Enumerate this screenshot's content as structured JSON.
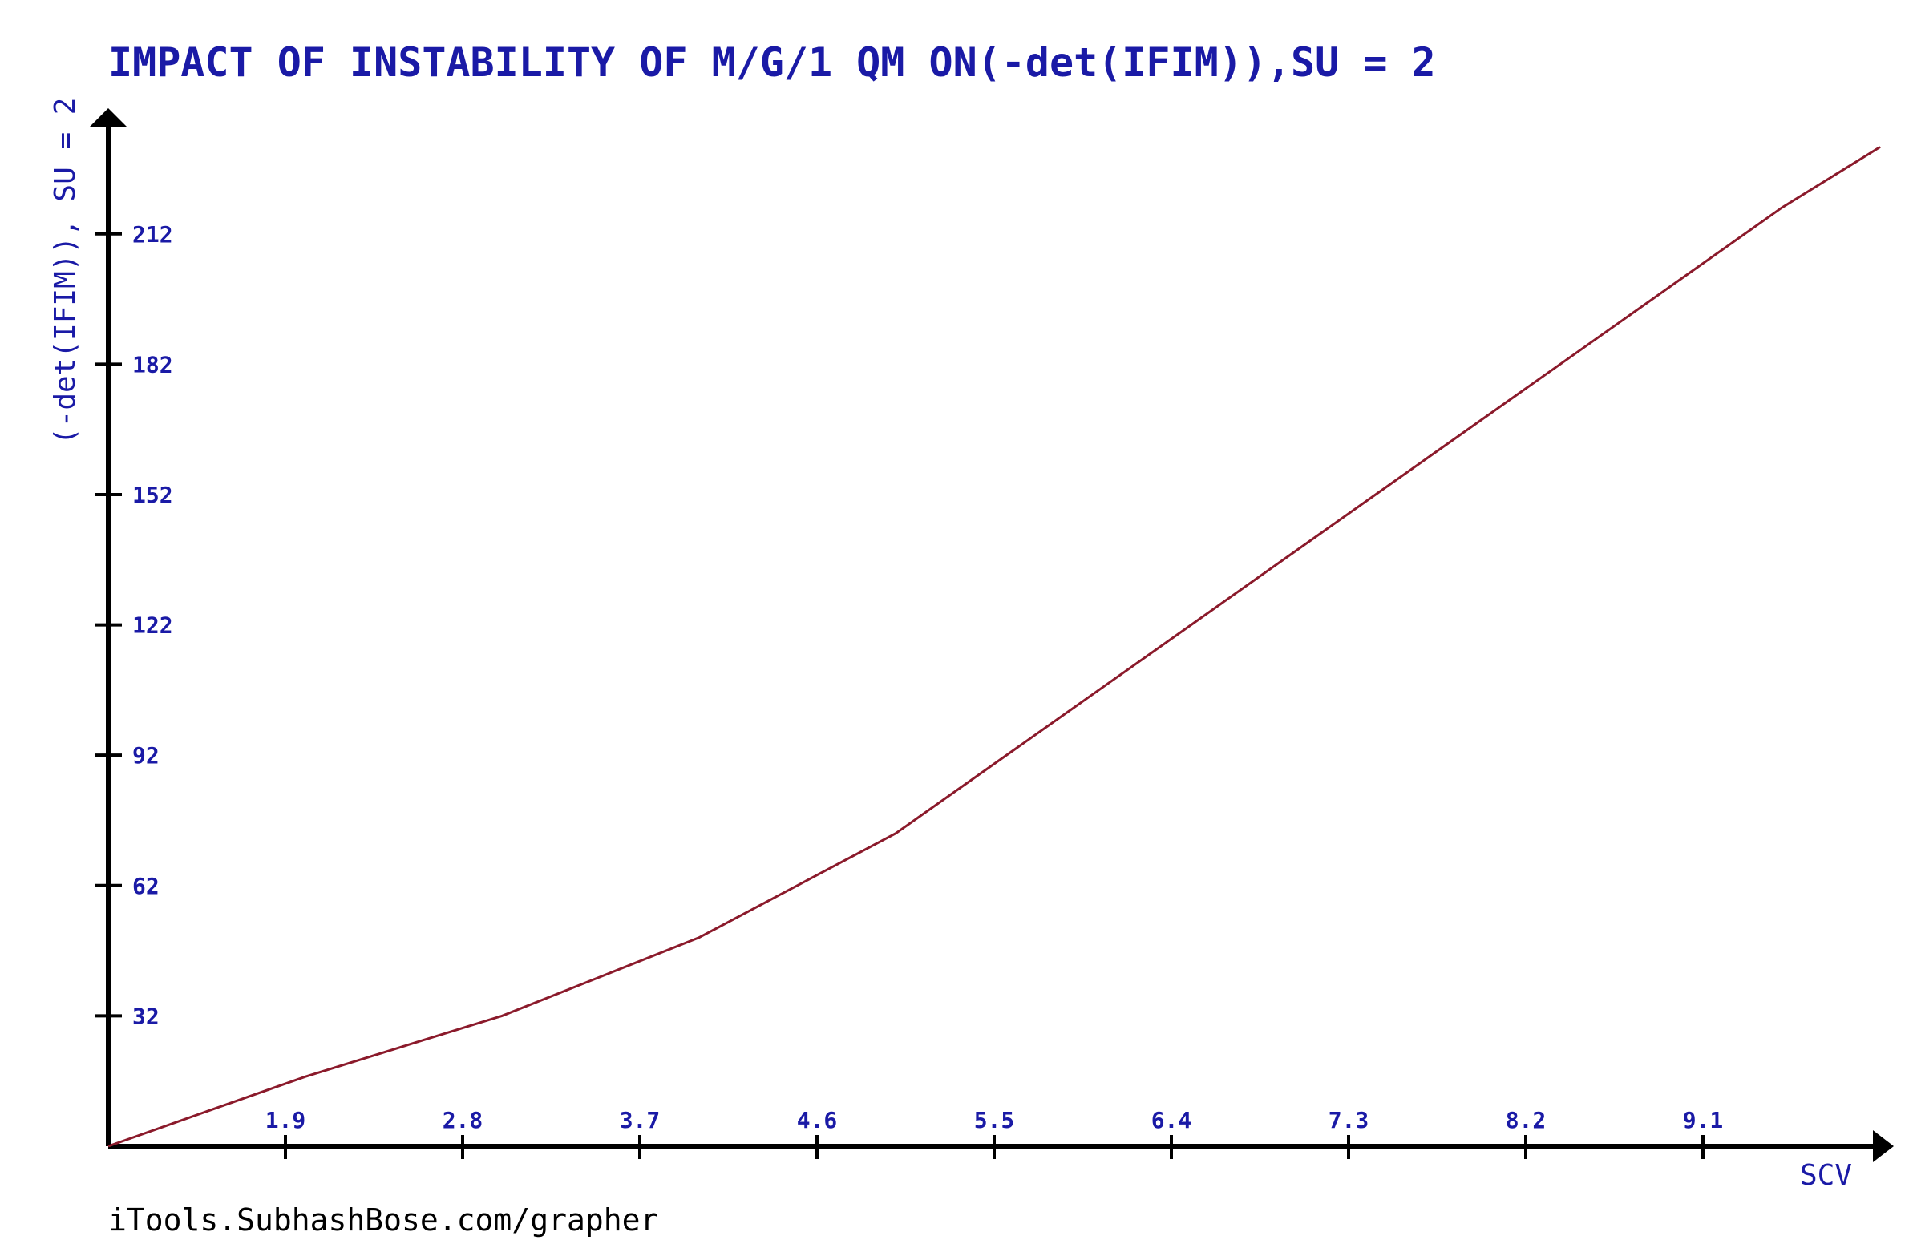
{
  "chart_data": {
    "type": "line",
    "title": "IMPACT OF INSTABILITY OF M/G/1 QM ON(-det(IFIM)),SU = 2",
    "xlabel": "SCV",
    "ylabel": "(-det(IFIM)), SU = 2",
    "x_ticks": [
      "1.9",
      "2.8",
      "3.7",
      "4.6",
      "5.5",
      "6.4",
      "7.3",
      "8.2",
      "9.1"
    ],
    "y_ticks": [
      "32",
      "62",
      "92",
      "122",
      "152",
      "182",
      "212"
    ],
    "xlim": [
      1.0,
      10.0
    ],
    "ylim": [
      2.0,
      240.0
    ],
    "grid": false,
    "series": [
      {
        "color": "#8b1a2b",
        "x": [
          1.0,
          1.5,
          2.0,
          2.5,
          3.0,
          3.5,
          4.0,
          4.5,
          5.0,
          5.5,
          6.0,
          6.5,
          7.0,
          7.5,
          8.0,
          8.5,
          9.0,
          9.5,
          10.0
        ],
        "y": [
          2,
          10,
          18,
          25,
          32,
          41,
          50,
          62,
          74,
          90,
          106,
          122,
          138,
          154,
          170,
          186,
          202,
          218,
          232
        ]
      }
    ]
  },
  "footer": {
    "credit": "iTools.SubhashBose.com/grapher"
  }
}
